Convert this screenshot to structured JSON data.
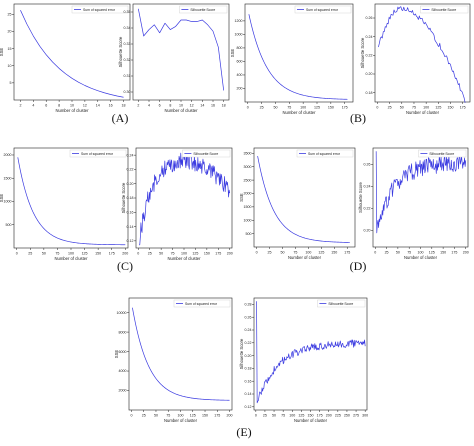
{
  "figure": {
    "panel_labels": [
      "(A)",
      "(B)",
      "(C)",
      "(D)",
      "(E)"
    ]
  },
  "colors": {
    "line": "#3a3ae0",
    "axis": "#222222",
    "text": "#222222"
  },
  "chart_data": [
    {
      "panel": "(A)",
      "type": "line",
      "xlabel": "Number of cluster",
      "ylabel": "SSE",
      "xticks": [
        2,
        4,
        6,
        8,
        10,
        12,
        14,
        16,
        18
      ],
      "yticks": [
        5,
        10,
        15,
        20,
        25
      ],
      "xlim": [
        1,
        19
      ],
      "ylim": [
        0,
        28
      ],
      "series": [
        {
          "name": "Sum of squared error",
          "shape": "decay",
          "x_start": 2,
          "x_end": 18,
          "n": 17,
          "y0": 26.2,
          "y_end": 0.8,
          "rate": 0.16,
          "noise": 0
        }
      ]
    },
    {
      "panel": "(A)",
      "type": "line",
      "xlabel": "Number of cluster",
      "ylabel": "Silhouette Score",
      "xticks": [
        2,
        4,
        6,
        8,
        10,
        12,
        14,
        16,
        18
      ],
      "yticks": [
        0.3,
        0.31,
        0.32,
        0.33,
        0.34,
        0.35
      ],
      "xlim": [
        1,
        19
      ],
      "ylim": [
        0.295,
        0.355
      ],
      "series": [
        {
          "name": "Silhouette Score",
          "x": [
            2,
            3,
            4,
            5,
            6,
            7,
            8,
            9,
            10,
            11,
            12,
            13,
            14,
            15,
            16,
            17,
            18
          ],
          "y": [
            0.352,
            0.335,
            0.339,
            0.342,
            0.337,
            0.343,
            0.339,
            0.341,
            0.345,
            0.345,
            0.344,
            0.344,
            0.345,
            0.342,
            0.338,
            0.328,
            0.301
          ]
        }
      ]
    },
    {
      "panel": "(B)",
      "type": "line",
      "xlabel": "Number of cluster",
      "ylabel": "SSE",
      "xticks": [
        0,
        25,
        50,
        75,
        100,
        125,
        150,
        175
      ],
      "yticks": [
        200,
        400,
        600,
        800,
        1000,
        1200
      ],
      "xlim": [
        -5,
        190
      ],
      "ylim": [
        0,
        1450
      ],
      "series": [
        {
          "name": "Sum of squared error",
          "shape": "decay",
          "x_start": 2,
          "x_end": 180,
          "n": 90,
          "y0": 1300,
          "y_end": 40,
          "rate": 0.03,
          "noise": 0
        }
      ]
    },
    {
      "panel": "(B)",
      "type": "line",
      "xlabel": "Number of cluster",
      "ylabel": "Silhouette Score",
      "xticks": [
        0,
        25,
        50,
        75,
        100,
        125,
        150,
        175
      ],
      "yticks": [
        0.18,
        0.2,
        0.22,
        0.24,
        0.26
      ],
      "xlim": [
        -5,
        190
      ],
      "ylim": [
        0.17,
        0.275
      ],
      "series": [
        {
          "name": "Silhouette Score",
          "shape": "arch",
          "x_start": 2,
          "x_end": 180,
          "n": 90,
          "y_a": 0.23,
          "y_peak": 0.27,
          "x_peak": 45,
          "y_b": 0.172,
          "noise": 0.003
        }
      ]
    },
    {
      "panel": "(C)",
      "type": "line",
      "xlabel": "Number of cluster",
      "ylabel": "SSE",
      "xticks": [
        0,
        25,
        50,
        75,
        100,
        125,
        150,
        175,
        200
      ],
      "yticks": [
        500,
        1000,
        1500,
        2000
      ],
      "xlim": [
        -5,
        205
      ],
      "ylim": [
        0,
        2150
      ],
      "series": [
        {
          "name": "Sum of squared error",
          "shape": "decay",
          "x_start": 2,
          "x_end": 200,
          "n": 100,
          "y0": 1950,
          "y_end": 70,
          "rate": 0.035,
          "noise": 0
        }
      ]
    },
    {
      "panel": "(C)",
      "type": "line",
      "xlabel": "Number of cluster",
      "ylabel": "Silhouette Score",
      "xticks": [
        0,
        25,
        50,
        75,
        100,
        125,
        150,
        175,
        200
      ],
      "yticks": [
        0.12,
        0.14,
        0.16,
        0.18,
        0.2,
        0.22,
        0.24
      ],
      "xlim": [
        -5,
        205
      ],
      "ylim": [
        0.11,
        0.25
      ],
      "series": [
        {
          "name": "Silhouette Score",
          "shape": "rise-fall",
          "x_start": 2,
          "x_end": 200,
          "n": 160,
          "y_a": 0.118,
          "y_peak": 0.232,
          "x_peak": 95,
          "y_b": 0.19,
          "noise": 0.012
        }
      ]
    },
    {
      "panel": "(D)",
      "type": "line",
      "xlabel": "Number of cluster",
      "ylabel": "SSE",
      "xticks": [
        0,
        25,
        50,
        75,
        100,
        125,
        150,
        175
      ],
      "yticks": [
        500,
        1000,
        1500,
        2000,
        2500,
        3000,
        3500
      ],
      "xlim": [
        -5,
        190
      ],
      "ylim": [
        0,
        3700
      ],
      "series": [
        {
          "name": "Sum of squared error",
          "shape": "decay",
          "x_start": 2,
          "x_end": 180,
          "n": 90,
          "y0": 3400,
          "y_end": 170,
          "rate": 0.032,
          "noise": 0
        }
      ]
    },
    {
      "panel": "(D)",
      "type": "line",
      "xlabel": "Number of cluster",
      "ylabel": "Silhouette Score",
      "xticks": [
        0,
        25,
        50,
        75,
        100,
        125,
        150,
        175,
        200
      ],
      "yticks": [
        0.2,
        0.22,
        0.24,
        0.26
      ],
      "xlim": [
        -5,
        205
      ],
      "ylim": [
        0.185,
        0.275
      ],
      "series": [
        {
          "name": "Silhouette Score",
          "shape": "rise",
          "x_start": 2,
          "x_end": 200,
          "n": 150,
          "y_spike": 0.272,
          "y_a": 0.198,
          "y_b": 0.262,
          "noise": 0.008
        }
      ]
    },
    {
      "panel": "(E)",
      "type": "line",
      "xlabel": "Number of cluster",
      "ylabel": "SSE",
      "xticks": [
        0,
        25,
        50,
        75,
        100,
        125,
        150,
        175,
        200
      ],
      "yticks": [
        2000,
        4000,
        6000,
        8000,
        10000
      ],
      "xlim": [
        -5,
        205
      ],
      "ylim": [
        0,
        11500
      ],
      "series": [
        {
          "name": "Sum of squared error",
          "shape": "decay",
          "x_start": 2,
          "x_end": 200,
          "n": 100,
          "y0": 10500,
          "y_end": 1000,
          "rate": 0.03,
          "noise": 0
        }
      ]
    },
    {
      "panel": "(E)",
      "type": "line",
      "xlabel": "Number of cluster",
      "ylabel": "Silhouette Score",
      "xticks": [
        0,
        25,
        50,
        75,
        100,
        125,
        150,
        175,
        200,
        225,
        250,
        275,
        300
      ],
      "yticks": [
        0.12,
        0.14,
        0.16,
        0.18,
        0.2,
        0.22,
        0.24,
        0.26,
        0.28
      ],
      "xlim": [
        -5,
        305
      ],
      "ylim": [
        0.115,
        0.29
      ],
      "series": [
        {
          "name": "Silhouette Score",
          "shape": "rise",
          "x_start": 2,
          "x_end": 300,
          "n": 180,
          "y_spike": 0.285,
          "y_a": 0.125,
          "y_b": 0.22,
          "noise": 0.006
        }
      ]
    }
  ]
}
